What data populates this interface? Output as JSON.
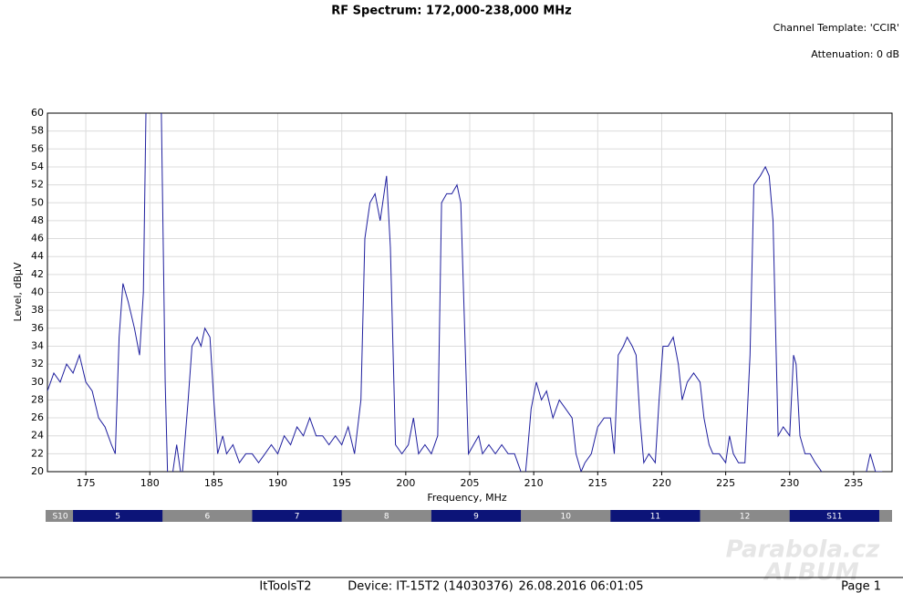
{
  "chart_data": {
    "type": "line",
    "title": "RF Spectrum: 172,000-238,000 MHz",
    "x_label": "Frequency, MHz",
    "y_label": "Level, dBµV",
    "xlim": [
      172,
      238
    ],
    "ylim": [
      20,
      60
    ],
    "xticks": [
      175,
      180,
      185,
      190,
      195,
      200,
      205,
      210,
      215,
      220,
      225,
      230,
      235
    ],
    "yticks": [
      20,
      22,
      24,
      26,
      28,
      30,
      32,
      34,
      36,
      38,
      40,
      42,
      44,
      46,
      48,
      50,
      52,
      54,
      56,
      58,
      60
    ],
    "grid": true,
    "series": [
      {
        "color": "#1f1f9e",
        "x": [
          172,
          172.5,
          173,
          173.5,
          174,
          174.5,
          175,
          175.5,
          176,
          176.5,
          177,
          177.3,
          177.6,
          177.9,
          178.3,
          178.8,
          179.2,
          179.5,
          179.7,
          180,
          180.5,
          180.9,
          181.2,
          181.4,
          181.8,
          182.1,
          182.5,
          183,
          183.3,
          183.7,
          184,
          184.3,
          184.7,
          185,
          185.3,
          185.7,
          186,
          186.5,
          187,
          187.5,
          188,
          188.5,
          189,
          189.5,
          190,
          190.5,
          191,
          191.5,
          192,
          192.5,
          193,
          193.5,
          194,
          194.5,
          195,
          195.5,
          196,
          196.5,
          196.8,
          197.2,
          197.6,
          198,
          198.5,
          198.8,
          199.2,
          199.7,
          200.2,
          200.6,
          201,
          201.5,
          202,
          202.5,
          202.8,
          203.2,
          203.6,
          204,
          204.3,
          204.6,
          204.9,
          205.3,
          205.7,
          206,
          206.5,
          207,
          207.5,
          208,
          208.5,
          209,
          209.3,
          209.5,
          209.8,
          210.2,
          210.6,
          211,
          211.5,
          212,
          212.5,
          213,
          213.3,
          213.7,
          214,
          214.5,
          215,
          215.5,
          216,
          216.3,
          216.6,
          217,
          217.3,
          217.7,
          218,
          218.3,
          218.6,
          219,
          219.5,
          219.8,
          220.1,
          220.5,
          220.9,
          221.3,
          221.6,
          222,
          222.5,
          223,
          223.3,
          223.7,
          224,
          224.5,
          225,
          225.3,
          225.6,
          226,
          226.5,
          226.9,
          227.2,
          227.7,
          228.1,
          228.4,
          228.7,
          229.1,
          229.5,
          230,
          230.3,
          230.5,
          230.8,
          231.2,
          231.6,
          232,
          232.5,
          233,
          233.5,
          234,
          234.5,
          235,
          235.5,
          236,
          236.3,
          236.7,
          237.2,
          237.6
        ],
        "values": [
          29,
          31,
          30,
          32,
          31,
          33,
          30,
          29,
          26,
          25,
          23,
          22,
          35,
          41,
          39,
          36,
          33,
          40,
          60,
          62,
          62,
          60,
          30,
          19,
          20,
          23,
          19,
          28,
          34,
          35,
          34,
          36,
          35,
          28,
          22,
          24,
          22,
          23,
          21,
          22,
          22,
          21,
          22,
          23,
          22,
          24,
          23,
          25,
          24,
          26,
          24,
          24,
          23,
          24,
          23,
          25,
          22,
          28,
          46,
          50,
          51,
          48,
          53,
          45,
          23,
          22,
          23,
          26,
          22,
          23,
          22,
          24,
          50,
          51,
          51,
          52,
          50,
          36,
          22,
          23,
          24,
          22,
          23,
          22,
          23,
          22,
          22,
          20,
          19,
          22,
          27,
          30,
          28,
          29,
          26,
          28,
          27,
          26,
          22,
          20,
          21,
          22,
          25,
          26,
          26,
          22,
          33,
          34,
          35,
          34,
          33,
          26,
          21,
          22,
          21,
          28,
          34,
          34,
          35,
          32,
          28,
          30,
          31,
          30,
          26,
          23,
          22,
          22,
          21,
          24,
          22,
          21,
          21,
          33,
          52,
          53,
          54,
          53,
          48,
          24,
          25,
          24,
          33,
          32,
          24,
          22,
          22,
          21,
          20,
          19,
          19,
          19,
          19,
          19,
          19,
          20,
          22,
          20,
          20,
          19
        ]
      }
    ]
  },
  "header": {
    "channel_template": "Channel Template: 'CCIR'",
    "attenuation": "Attenuation: 0 dB"
  },
  "channel_bar": [
    {
      "label": "S10",
      "start": 172,
      "end": 174
    },
    {
      "label": "5",
      "start": 174,
      "end": 181
    },
    {
      "label": "6",
      "start": 181,
      "end": 188
    },
    {
      "label": "7",
      "start": 188,
      "end": 195
    },
    {
      "label": "8",
      "start": 195,
      "end": 202
    },
    {
      "label": "9",
      "start": 202,
      "end": 209
    },
    {
      "label": "10",
      "start": 209,
      "end": 216
    },
    {
      "label": "11",
      "start": 216,
      "end": 223
    },
    {
      "label": "12",
      "start": 223,
      "end": 230
    },
    {
      "label": "S11",
      "start": 230,
      "end": 237
    }
  ],
  "footer": {
    "app": "ItToolsT2",
    "device": "Device: IT-15T2 (14030376)",
    "timestamp": "26.08.2016 06:01:05",
    "page": "Page 1"
  },
  "watermark": {
    "line1": "Parabola.cz",
    "line2": "ALBUM"
  }
}
